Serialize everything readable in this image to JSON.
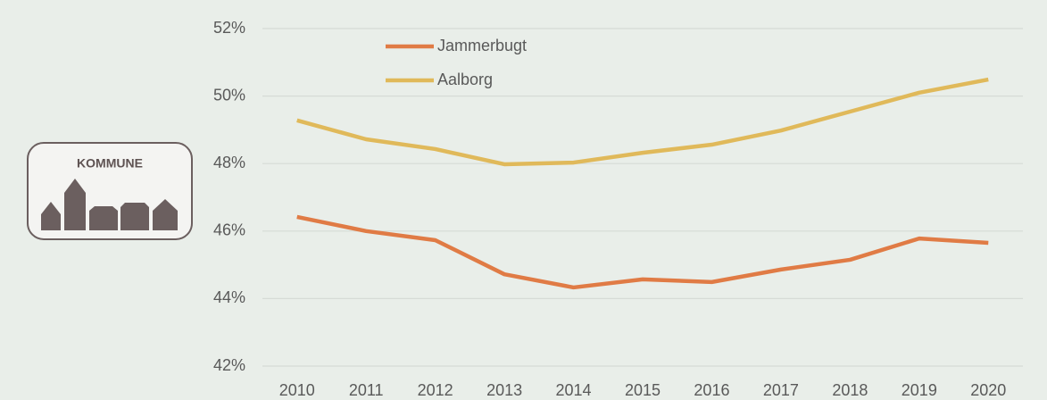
{
  "logo": {
    "label": "KOMMUNE"
  },
  "chart_data": {
    "type": "line",
    "categories": [
      "2010",
      "2011",
      "2012",
      "2013",
      "2014",
      "2015",
      "2016",
      "2017",
      "2018",
      "2019",
      "2020"
    ],
    "series": [
      {
        "name": "Jammerbugt",
        "color": "#e07b45",
        "values": [
          46.42,
          46.0,
          45.73,
          44.72,
          44.33,
          44.57,
          44.49,
          44.86,
          45.15,
          45.78,
          45.65
        ]
      },
      {
        "name": "Aalborg",
        "color": "#e0b95a",
        "values": [
          49.28,
          48.72,
          48.43,
          47.98,
          48.03,
          48.32,
          48.56,
          48.98,
          49.54,
          50.1,
          50.49
        ]
      }
    ],
    "ylim": [
      42,
      52
    ],
    "yticks": [
      {
        "value": 42,
        "label": "42%"
      },
      {
        "value": 44,
        "label": "44%"
      },
      {
        "value": 46,
        "label": "46%"
      },
      {
        "value": 48,
        "label": "48%"
      },
      {
        "value": 50,
        "label": "50%"
      },
      {
        "value": 52,
        "label": "52%"
      }
    ],
    "grid": true,
    "legend": "top"
  }
}
